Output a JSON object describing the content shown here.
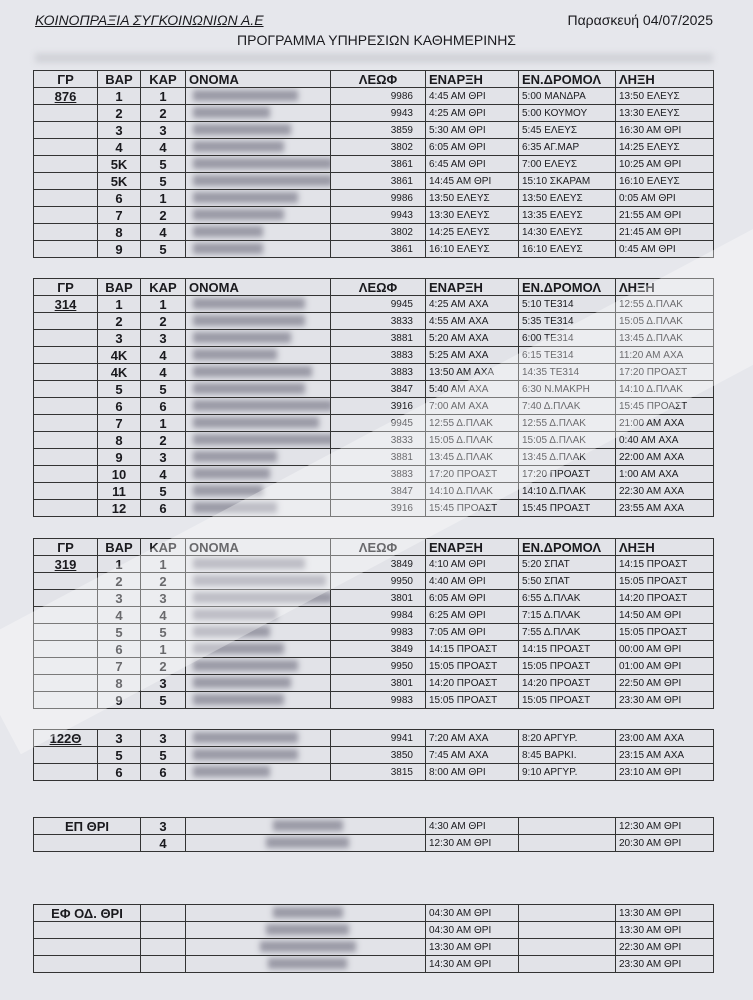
{
  "header": {
    "company": "ΚΟΙΝΟΠΡΑΞΙΑ ΣΥΓΚΟΙΝΩΝΙΩΝ Α.Ε",
    "date": "Παρασκευή 04/07/2025",
    "title": "ΠΡΟΓΡΑΜΜΑ ΥΠΗΡΕΣΙΩΝ ΚΑΘΗΜΕΡΙΝΗΣ"
  },
  "columns": [
    "ΓΡ",
    "ΒΑΡ",
    "ΚΑΡ",
    "ΟΝΟΜΑ",
    "ΛΕΩΦ",
    "ΕΝΑΡΞΗ",
    "ΕΝ.ΔΡΟΜΟΛ",
    "ΛΗΞΗ"
  ],
  "groups": [
    {
      "code": "876",
      "header": true,
      "rows": [
        [
          "1",
          "1",
          "9986",
          "4:45 AM ΘΡΙ",
          "5:00 ΜΑΝΔΡΑ",
          "13:50 ΕΛΕΥΣ"
        ],
        [
          "2",
          "2",
          "9943",
          "4:25 AM ΘΡΙ",
          "5:00 ΚΟΥΜΟΥ",
          "13:30 ΕΛΕΥΣ"
        ],
        [
          "3",
          "3",
          "3859",
          "5:30 AM ΘΡΙ",
          "5:45 ΕΛΕΥΣ",
          "16:30 AM ΘΡΙ"
        ],
        [
          "4",
          "4",
          "3802",
          "6:05 AM ΘΡΙ",
          "6:35 ΑΓ.ΜΑΡ",
          "14:25 ΕΛΕΥΣ"
        ],
        [
          "5Κ",
          "5",
          "3861",
          "6:45 AM ΘΡΙ",
          "7:00 ΕΛΕΥΣ",
          "10:25 AM ΘΡΙ"
        ],
        [
          "5Κ",
          "5",
          "3861",
          "14:45 AM ΘΡΙ",
          "15:10 ΣΚΑΡΑΜ",
          "16:10 ΕΛΕΥΣ"
        ],
        [
          "6",
          "1",
          "9986",
          "13:50 ΕΛΕΥΣ",
          "13:50 ΕΛΕΥΣ",
          "0:05 AM ΘΡΙ"
        ],
        [
          "7",
          "2",
          "9943",
          "13:30 ΕΛΕΥΣ",
          "13:35 ΕΛΕΥΣ",
          "21:55 AM ΘΡΙ"
        ],
        [
          "8",
          "4",
          "3802",
          "14:25 ΕΛΕΥΣ",
          "14:30 ΕΛΕΥΣ",
          "21:45 AM ΘΡΙ"
        ],
        [
          "9",
          "5",
          "3861",
          "16:10 ΕΛΕΥΣ",
          "16:10 ΕΛΕΥΣ",
          "0:45 AM ΘΡΙ"
        ]
      ]
    },
    {
      "code": "314",
      "header": true,
      "rows": [
        [
          "1",
          "1",
          "9945",
          "4:25 AM ΑΧΑ",
          "5:10 ΤΕ314",
          "12:55 Δ.ΠΛΑΚ"
        ],
        [
          "2",
          "2",
          "3833",
          "4:55 AM ΑΧΑ",
          "5:35 ΤΕ314",
          "15:05 Δ.ΠΛΑΚ"
        ],
        [
          "3",
          "3",
          "3881",
          "5:20 AM ΑΧΑ",
          "6:00 ΤΕ314",
          "13:45 Δ.ΠΛΑΚ"
        ],
        [
          "4Κ",
          "4",
          "3883",
          "5:25 AM ΑΧΑ",
          "6:15 ΤΕ314",
          "11:20 AM ΑΧΑ"
        ],
        [
          "4Κ",
          "4",
          "3883",
          "13:50 AM ΑΧΑ",
          "14:35 ΤΕ314",
          "17:20 ΠΡΟΑΣΤ"
        ],
        [
          "5",
          "5",
          "3847",
          "5:40 AM ΑΧΑ",
          "6:30 Ν.ΜΑΚΡΗ",
          "14:10 Δ.ΠΛΑΚ"
        ],
        [
          "6",
          "6",
          "3916",
          "7:00 AM ΑΧΑ",
          "7:40 Δ.ΠΛΑΚ",
          "15:45 ΠΡΟΑΣΤ"
        ],
        [
          "7",
          "1",
          "9945",
          "12:55 Δ.ΠΛΑΚ",
          "12:55 Δ.ΠΛΑΚ",
          "21:00 AM ΑΧΑ"
        ],
        [
          "8",
          "2",
          "3833",
          "15:05 Δ.ΠΛΑΚ",
          "15:05 Δ.ΠΛΑΚ",
          "0:40 AM ΑΧΑ"
        ],
        [
          "9",
          "3",
          "3881",
          "13:45 Δ.ΠΛΑΚ",
          "13:45 Δ.ΠΛΑΚ",
          "22:00 AM ΑΧΑ"
        ],
        [
          "10",
          "4",
          "3883",
          "17:20 ΠΡΟΑΣΤ",
          "17:20 ΠΡΟΑΣΤ",
          "1:00 AM ΑΧΑ"
        ],
        [
          "11",
          "5",
          "3847",
          "14:10 Δ.ΠΛΑΚ",
          "14:10 Δ.ΠΛΑΚ",
          "22:30 AM ΑΧΑ"
        ],
        [
          "12",
          "6",
          "3916",
          "15:45 ΠΡΟΑΣΤ",
          "15:45 ΠΡΟΑΣΤ",
          "23:55 AM ΑΧΑ"
        ]
      ]
    },
    {
      "code": "319",
      "header": true,
      "rows": [
        [
          "1",
          "1",
          "3849",
          "4:10 AM ΘΡΙ",
          "5:20 ΣΠΑΤ",
          "14:15 ΠΡΟΑΣΤ"
        ],
        [
          "2",
          "2",
          "9950",
          "4:40 AM ΘΡΙ",
          "5:50 ΣΠΑΤ",
          "15:05 ΠΡΟΑΣΤ"
        ],
        [
          "3",
          "3",
          "3801",
          "6:05 AM ΘΡΙ",
          "6:55 Δ.ΠΛΑΚ",
          "14:20 ΠΡΟΑΣΤ"
        ],
        [
          "4",
          "4",
          "9984",
          "6:25 AM ΘΡΙ",
          "7:15 Δ.ΠΛΑΚ",
          "14:50 AM ΘΡΙ"
        ],
        [
          "5",
          "5",
          "9983",
          "7:05 AM ΘΡΙ",
          "7:55 Δ.ΠΛΑΚ",
          "15:05 ΠΡΟΑΣΤ"
        ],
        [
          "6",
          "1",
          "3849",
          "14:15 ΠΡΟΑΣΤ",
          "14:15 ΠΡΟΑΣΤ",
          "00:00 AM ΘΡΙ"
        ],
        [
          "7",
          "2",
          "9950",
          "15:05 ΠΡΟΑΣΤ",
          "15:05 ΠΡΟΑΣΤ",
          "01:00 AM ΘΡΙ"
        ],
        [
          "8",
          "3",
          "3801",
          "14:20 ΠΡΟΑΣΤ",
          "14:20 ΠΡΟΑΣΤ",
          "22:50 AM ΘΡΙ"
        ],
        [
          "9",
          "5",
          "9983",
          "15:05 ΠΡΟΑΣΤ",
          "15:05 ΠΡΟΑΣΤ",
          "23:30 AM ΘΡΙ"
        ]
      ]
    },
    {
      "code": "122Θ",
      "header": false,
      "rows": [
        [
          "3",
          "3",
          "9941",
          "7:20 AM ΑΧΑ",
          "8:20 ΑΡΓΥΡ.",
          "23:00 AM ΑΧΑ"
        ],
        [
          "5",
          "5",
          "3850",
          "7:45 AM ΑΧΑ",
          "8:45 ΒΑΡΚΙ.",
          "23:15 AM ΑΧΑ"
        ],
        [
          "6",
          "6",
          "3815",
          "8:00 AM ΘΡΙ",
          "9:10 ΑΡΓΥΡ.",
          "23:10 AM ΘΡΙ"
        ]
      ]
    }
  ],
  "reserves": [
    {
      "code": "ΕΠ ΘΡΙ",
      "rows": [
        [
          "3",
          "4:30 AM ΘΡΙ",
          "12:30 AM ΘΡΙ"
        ],
        [
          "4",
          "12:30 AM ΘΡΙ",
          "20:30 AM ΘΡΙ"
        ]
      ]
    },
    {
      "code": "ΕΦ ΟΔ. ΘΡΙ",
      "rows": [
        [
          "",
          "04:30 AM ΘΡΙ",
          "13:30 AM ΘΡΙ"
        ],
        [
          "",
          "04:30 AM ΘΡΙ",
          "13:30 AM ΘΡΙ"
        ],
        [
          "",
          "13:30 AM ΘΡΙ",
          "22:30 AM ΘΡΙ"
        ],
        [
          "",
          "14:30 AM ΘΡΙ",
          "23:30 AM ΘΡΙ"
        ]
      ]
    }
  ],
  "colors": {
    "paper": "#e6e7ec",
    "ink": "#1a1a1e"
  }
}
